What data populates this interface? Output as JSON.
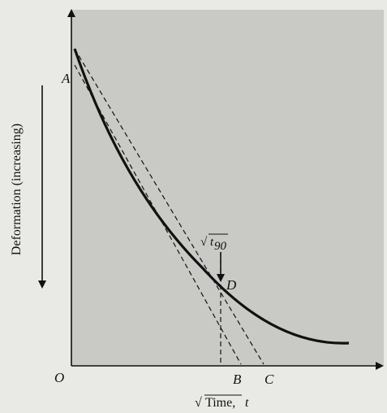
{
  "diagram": {
    "y_axis_label": "Deformation (increasing)",
    "x_axis_label_prefix": "√",
    "x_axis_label_word": "Time, ",
    "x_axis_label_var": "t",
    "origin_label": "O",
    "point_a_label": "A",
    "point_b_label": "B",
    "point_c_label": "C",
    "point_d_label": "D",
    "t90_root": "√",
    "t90_var": "t",
    "t90_sub": "90"
  }
}
